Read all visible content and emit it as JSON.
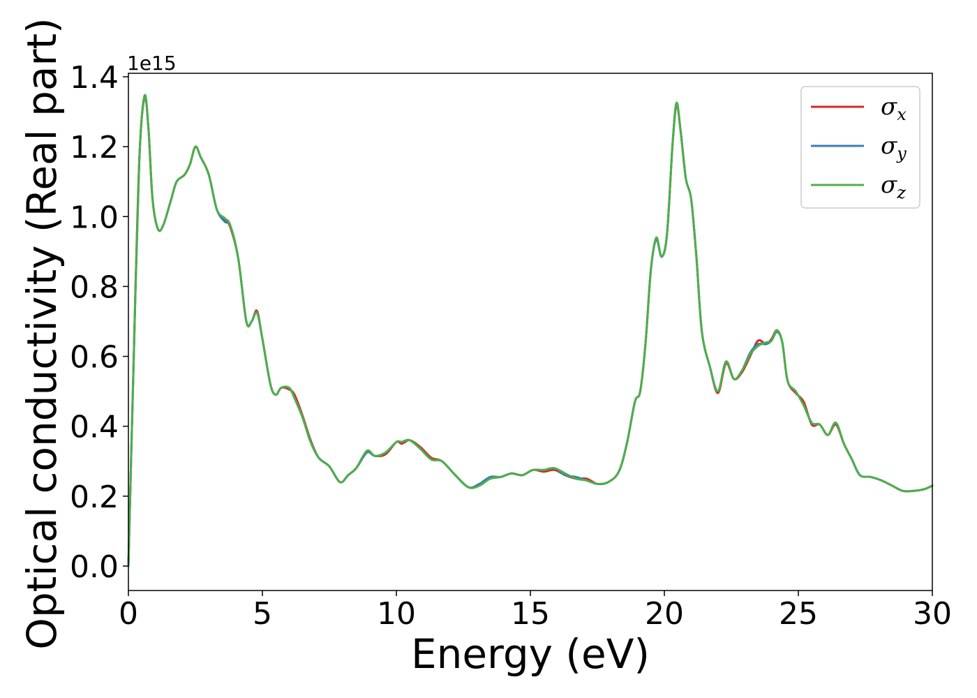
{
  "chart_data": {
    "type": "line",
    "xlabel": "Energy (eV)",
    "ylabel": "Optical conductivity (Real part)",
    "y_offset_label": "1e15",
    "xlim": [
      0,
      30
    ],
    "ylim": [
      -0.07,
      1.41
    ],
    "xticks": [
      0,
      5,
      10,
      15,
      20,
      25,
      30
    ],
    "xtick_labels": [
      "0",
      "5",
      "10",
      "15",
      "20",
      "25",
      "30"
    ],
    "yticks": [
      0.0,
      0.2,
      0.4,
      0.6,
      0.8,
      1.0,
      1.2,
      1.4
    ],
    "ytick_labels": [
      "0.0",
      "0.2",
      "0.4",
      "0.6",
      "0.8",
      "1.0",
      "1.2",
      "1.4"
    ],
    "grid": false,
    "legend_position": "top-right",
    "series": [
      {
        "name": "σ",
        "subscript": "x",
        "color": "#d62728",
        "points": [
          [
            0,
            0.0
          ],
          [
            0.2,
            0.6
          ],
          [
            0.4,
            1.15
          ],
          [
            0.6,
            1.34
          ],
          [
            0.75,
            1.25
          ],
          [
            0.9,
            1.05
          ],
          [
            1.1,
            0.965
          ],
          [
            1.3,
            0.975
          ],
          [
            1.6,
            1.05
          ],
          [
            1.8,
            1.1
          ],
          [
            2.1,
            1.12
          ],
          [
            2.3,
            1.15
          ],
          [
            2.5,
            1.2
          ],
          [
            2.7,
            1.17
          ],
          [
            3.0,
            1.12
          ],
          [
            3.3,
            1.02
          ],
          [
            3.6,
            0.99
          ],
          [
            3.8,
            0.97
          ],
          [
            4.1,
            0.88
          ],
          [
            4.4,
            0.7
          ],
          [
            4.6,
            0.7
          ],
          [
            4.8,
            0.73
          ],
          [
            5.0,
            0.65
          ],
          [
            5.3,
            0.52
          ],
          [
            5.5,
            0.49
          ],
          [
            5.7,
            0.51
          ],
          [
            6.0,
            0.505
          ],
          [
            6.2,
            0.49
          ],
          [
            6.5,
            0.43
          ],
          [
            6.8,
            0.36
          ],
          [
            7.1,
            0.31
          ],
          [
            7.5,
            0.285
          ],
          [
            7.9,
            0.24
          ],
          [
            8.2,
            0.26
          ],
          [
            8.5,
            0.28
          ],
          [
            8.9,
            0.325
          ],
          [
            9.2,
            0.315
          ],
          [
            9.6,
            0.32
          ],
          [
            10.0,
            0.355
          ],
          [
            10.2,
            0.35
          ],
          [
            10.5,
            0.36
          ],
          [
            10.9,
            0.34
          ],
          [
            11.3,
            0.31
          ],
          [
            11.7,
            0.3
          ],
          [
            12.2,
            0.26
          ],
          [
            12.7,
            0.225
          ],
          [
            13.1,
            0.235
          ],
          [
            13.5,
            0.25
          ],
          [
            13.9,
            0.255
          ],
          [
            14.3,
            0.265
          ],
          [
            14.7,
            0.26
          ],
          [
            15.1,
            0.275
          ],
          [
            15.5,
            0.27
          ],
          [
            15.9,
            0.275
          ],
          [
            16.3,
            0.26
          ],
          [
            16.7,
            0.25
          ],
          [
            17.1,
            0.25
          ],
          [
            17.5,
            0.235
          ],
          [
            17.9,
            0.24
          ],
          [
            18.3,
            0.27
          ],
          [
            18.6,
            0.35
          ],
          [
            18.9,
            0.47
          ],
          [
            19.1,
            0.5
          ],
          [
            19.3,
            0.64
          ],
          [
            19.5,
            0.85
          ],
          [
            19.7,
            0.935
          ],
          [
            19.9,
            0.885
          ],
          [
            20.1,
            0.95
          ],
          [
            20.3,
            1.2
          ],
          [
            20.45,
            1.32
          ],
          [
            20.6,
            1.25
          ],
          [
            20.8,
            1.11
          ],
          [
            21.0,
            1.05
          ],
          [
            21.2,
            0.88
          ],
          [
            21.4,
            0.67
          ],
          [
            21.7,
            0.57
          ],
          [
            22.0,
            0.495
          ],
          [
            22.3,
            0.58
          ],
          [
            22.6,
            0.535
          ],
          [
            22.9,
            0.555
          ],
          [
            23.2,
            0.6
          ],
          [
            23.5,
            0.645
          ],
          [
            23.8,
            0.635
          ],
          [
            24.0,
            0.65
          ],
          [
            24.2,
            0.675
          ],
          [
            24.4,
            0.64
          ],
          [
            24.6,
            0.53
          ],
          [
            24.9,
            0.495
          ],
          [
            25.2,
            0.47
          ],
          [
            25.5,
            0.405
          ],
          [
            25.8,
            0.405
          ],
          [
            26.1,
            0.375
          ],
          [
            26.4,
            0.405
          ],
          [
            26.7,
            0.35
          ],
          [
            27.0,
            0.305
          ],
          [
            27.3,
            0.26
          ],
          [
            27.7,
            0.255
          ],
          [
            28.1,
            0.245
          ],
          [
            28.5,
            0.23
          ],
          [
            28.9,
            0.215
          ],
          [
            29.3,
            0.215
          ],
          [
            29.7,
            0.22
          ],
          [
            30.0,
            0.23
          ]
        ]
      },
      {
        "name": "σ",
        "subscript": "y",
        "color": "#377eb8",
        "points": [
          [
            0,
            0.0
          ],
          [
            0.2,
            0.6
          ],
          [
            0.4,
            1.15
          ],
          [
            0.6,
            1.345
          ],
          [
            0.75,
            1.25
          ],
          [
            0.9,
            1.05
          ],
          [
            1.1,
            0.965
          ],
          [
            1.3,
            0.975
          ],
          [
            1.6,
            1.05
          ],
          [
            1.8,
            1.1
          ],
          [
            2.1,
            1.12
          ],
          [
            2.3,
            1.15
          ],
          [
            2.5,
            1.2
          ],
          [
            2.7,
            1.17
          ],
          [
            3.0,
            1.12
          ],
          [
            3.3,
            1.02
          ],
          [
            3.6,
            0.985
          ],
          [
            3.8,
            0.975
          ],
          [
            4.1,
            0.88
          ],
          [
            4.4,
            0.7
          ],
          [
            4.6,
            0.7
          ],
          [
            4.8,
            0.725
          ],
          [
            5.0,
            0.65
          ],
          [
            5.3,
            0.52
          ],
          [
            5.5,
            0.49
          ],
          [
            5.7,
            0.51
          ],
          [
            6.0,
            0.51
          ],
          [
            6.2,
            0.48
          ],
          [
            6.5,
            0.425
          ],
          [
            6.8,
            0.355
          ],
          [
            7.1,
            0.31
          ],
          [
            7.5,
            0.285
          ],
          [
            7.9,
            0.24
          ],
          [
            8.2,
            0.26
          ],
          [
            8.5,
            0.28
          ],
          [
            8.9,
            0.325
          ],
          [
            9.2,
            0.315
          ],
          [
            9.6,
            0.325
          ],
          [
            10.0,
            0.355
          ],
          [
            10.2,
            0.355
          ],
          [
            10.5,
            0.36
          ],
          [
            10.9,
            0.335
          ],
          [
            11.3,
            0.305
          ],
          [
            11.7,
            0.3
          ],
          [
            12.2,
            0.26
          ],
          [
            12.7,
            0.225
          ],
          [
            13.1,
            0.235
          ],
          [
            13.5,
            0.255
          ],
          [
            13.9,
            0.255
          ],
          [
            14.3,
            0.265
          ],
          [
            14.7,
            0.26
          ],
          [
            15.1,
            0.275
          ],
          [
            15.5,
            0.275
          ],
          [
            15.9,
            0.28
          ],
          [
            16.3,
            0.26
          ],
          [
            16.7,
            0.255
          ],
          [
            17.1,
            0.245
          ],
          [
            17.5,
            0.235
          ],
          [
            17.9,
            0.24
          ],
          [
            18.3,
            0.27
          ],
          [
            18.6,
            0.35
          ],
          [
            18.9,
            0.47
          ],
          [
            19.1,
            0.5
          ],
          [
            19.3,
            0.64
          ],
          [
            19.5,
            0.85
          ],
          [
            19.7,
            0.935
          ],
          [
            19.9,
            0.885
          ],
          [
            20.1,
            0.95
          ],
          [
            20.3,
            1.2
          ],
          [
            20.45,
            1.325
          ],
          [
            20.6,
            1.25
          ],
          [
            20.8,
            1.11
          ],
          [
            21.0,
            1.05
          ],
          [
            21.2,
            0.88
          ],
          [
            21.4,
            0.67
          ],
          [
            21.7,
            0.57
          ],
          [
            22.0,
            0.5
          ],
          [
            22.3,
            0.585
          ],
          [
            22.6,
            0.535
          ],
          [
            22.9,
            0.56
          ],
          [
            23.2,
            0.61
          ],
          [
            23.5,
            0.635
          ],
          [
            23.8,
            0.635
          ],
          [
            24.0,
            0.645
          ],
          [
            24.2,
            0.67
          ],
          [
            24.4,
            0.64
          ],
          [
            24.6,
            0.53
          ],
          [
            24.9,
            0.5
          ],
          [
            25.2,
            0.46
          ],
          [
            25.5,
            0.41
          ],
          [
            25.8,
            0.405
          ],
          [
            26.1,
            0.375
          ],
          [
            26.4,
            0.41
          ],
          [
            26.7,
            0.35
          ],
          [
            27.0,
            0.305
          ],
          [
            27.3,
            0.26
          ],
          [
            27.7,
            0.255
          ],
          [
            28.1,
            0.245
          ],
          [
            28.5,
            0.23
          ],
          [
            28.9,
            0.215
          ],
          [
            29.3,
            0.215
          ],
          [
            29.7,
            0.22
          ],
          [
            30.0,
            0.23
          ]
        ]
      },
      {
        "name": "σ",
        "subscript": "z",
        "color": "#4daf4a",
        "points": [
          [
            0,
            0.0
          ],
          [
            0.2,
            0.6
          ],
          [
            0.4,
            1.15
          ],
          [
            0.6,
            1.345
          ],
          [
            0.75,
            1.25
          ],
          [
            0.9,
            1.05
          ],
          [
            1.1,
            0.965
          ],
          [
            1.3,
            0.975
          ],
          [
            1.6,
            1.05
          ],
          [
            1.8,
            1.1
          ],
          [
            2.1,
            1.12
          ],
          [
            2.3,
            1.15
          ],
          [
            2.5,
            1.2
          ],
          [
            2.7,
            1.17
          ],
          [
            3.0,
            1.12
          ],
          [
            3.3,
            1.02
          ],
          [
            3.6,
            0.995
          ],
          [
            3.8,
            0.975
          ],
          [
            4.1,
            0.88
          ],
          [
            4.4,
            0.7
          ],
          [
            4.6,
            0.7
          ],
          [
            4.8,
            0.725
          ],
          [
            5.0,
            0.65
          ],
          [
            5.3,
            0.52
          ],
          [
            5.5,
            0.49
          ],
          [
            5.7,
            0.51
          ],
          [
            6.0,
            0.51
          ],
          [
            6.2,
            0.48
          ],
          [
            6.5,
            0.425
          ],
          [
            6.8,
            0.355
          ],
          [
            7.1,
            0.31
          ],
          [
            7.5,
            0.285
          ],
          [
            7.9,
            0.24
          ],
          [
            8.2,
            0.26
          ],
          [
            8.5,
            0.28
          ],
          [
            8.9,
            0.33
          ],
          [
            9.2,
            0.315
          ],
          [
            9.6,
            0.325
          ],
          [
            10.0,
            0.355
          ],
          [
            10.2,
            0.355
          ],
          [
            10.5,
            0.36
          ],
          [
            10.9,
            0.335
          ],
          [
            11.3,
            0.305
          ],
          [
            11.7,
            0.3
          ],
          [
            12.2,
            0.26
          ],
          [
            12.7,
            0.225
          ],
          [
            13.1,
            0.23
          ],
          [
            13.5,
            0.25
          ],
          [
            13.9,
            0.255
          ],
          [
            14.3,
            0.265
          ],
          [
            14.7,
            0.26
          ],
          [
            15.1,
            0.275
          ],
          [
            15.5,
            0.275
          ],
          [
            15.9,
            0.28
          ],
          [
            16.3,
            0.265
          ],
          [
            16.7,
            0.25
          ],
          [
            17.1,
            0.245
          ],
          [
            17.5,
            0.235
          ],
          [
            17.9,
            0.24
          ],
          [
            18.3,
            0.27
          ],
          [
            18.6,
            0.35
          ],
          [
            18.9,
            0.47
          ],
          [
            19.1,
            0.5
          ],
          [
            19.3,
            0.64
          ],
          [
            19.5,
            0.85
          ],
          [
            19.7,
            0.94
          ],
          [
            19.9,
            0.885
          ],
          [
            20.1,
            0.95
          ],
          [
            20.3,
            1.2
          ],
          [
            20.45,
            1.325
          ],
          [
            20.6,
            1.25
          ],
          [
            20.8,
            1.11
          ],
          [
            21.0,
            1.05
          ],
          [
            21.2,
            0.88
          ],
          [
            21.4,
            0.67
          ],
          [
            21.7,
            0.57
          ],
          [
            22.0,
            0.5
          ],
          [
            22.3,
            0.585
          ],
          [
            22.6,
            0.535
          ],
          [
            22.9,
            0.56
          ],
          [
            23.2,
            0.605
          ],
          [
            23.5,
            0.63
          ],
          [
            23.8,
            0.64
          ],
          [
            24.0,
            0.645
          ],
          [
            24.2,
            0.675
          ],
          [
            24.4,
            0.64
          ],
          [
            24.6,
            0.53
          ],
          [
            24.9,
            0.5
          ],
          [
            25.2,
            0.46
          ],
          [
            25.5,
            0.41
          ],
          [
            25.8,
            0.405
          ],
          [
            26.1,
            0.375
          ],
          [
            26.4,
            0.41
          ],
          [
            26.7,
            0.35
          ],
          [
            27.0,
            0.305
          ],
          [
            27.3,
            0.26
          ],
          [
            27.7,
            0.255
          ],
          [
            28.1,
            0.245
          ],
          [
            28.5,
            0.23
          ],
          [
            28.9,
            0.215
          ],
          [
            29.3,
            0.215
          ],
          [
            29.7,
            0.22
          ],
          [
            30.0,
            0.23
          ]
        ]
      }
    ]
  }
}
